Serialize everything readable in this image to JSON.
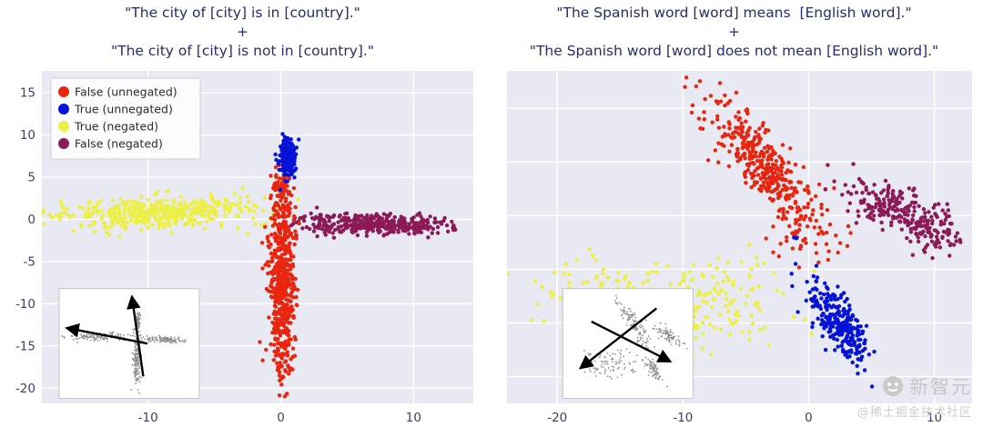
{
  "watermark": {
    "brand": "新智元",
    "credit": "@稀土掘金技术社区"
  },
  "chart_data": [
    {
      "type": "scatter",
      "title_lines": [
        "\"The city of [city] is in [country].\"",
        "+",
        "\"The city of [city] is not in [country].\""
      ],
      "title_color": "#262d6e",
      "bg": "#e9e9f4",
      "tick_color": "#3b4268",
      "xlim": [
        -18,
        14.5
      ],
      "ylim": [
        -21.8,
        17.6
      ],
      "xticks": [
        -10,
        0,
        10
      ],
      "yticks": [
        15,
        10,
        5,
        0,
        -5,
        -10,
        -15,
        -20
      ],
      "yticks_visible": true,
      "grid_x": [
        -10,
        0,
        10
      ],
      "grid_y": [
        15,
        10,
        5,
        0,
        -5,
        -10,
        -15,
        -20
      ],
      "legend": {
        "visible": true,
        "items": [
          {
            "label": "False (unnegated)",
            "color": "#e8250f"
          },
          {
            "label": "True (unnegated)",
            "color": "#0413d6"
          },
          {
            "label": "True (negated)",
            "color": "#ecf046"
          },
          {
            "label": "False (negated)",
            "color": "#8c1a56"
          }
        ]
      },
      "clusters": [
        {
          "name": "true-negated-main",
          "color": "#ecf046",
          "count": 430,
          "cx": -9.5,
          "cy": 0.8,
          "sx": 3.5,
          "sy": 0.85,
          "angle": 3
        },
        {
          "name": "true-negated-sparse",
          "color": "#ecf046",
          "count": 28,
          "cx": -3.5,
          "cy": 1.2,
          "sx": 2.2,
          "sy": 1.2,
          "angle": 0
        },
        {
          "name": "false-negated-main",
          "color": "#8c1a56",
          "count": 390,
          "cx": 7.2,
          "cy": -0.6,
          "sx": 2.7,
          "sy": 0.6,
          "angle": -3
        },
        {
          "name": "false-negated-sparse",
          "color": "#8c1a56",
          "count": 12,
          "cx": 2.8,
          "cy": 0.2,
          "sx": 1.4,
          "sy": 0.5,
          "angle": 0
        },
        {
          "name": "false-unnegated-main",
          "color": "#e8250f",
          "count": 560,
          "cx": 0.1,
          "cy": -7.5,
          "sx": 0.5,
          "sy": 6.0,
          "angle": 0
        },
        {
          "name": "false-unnegated-top",
          "color": "#e8250f",
          "count": 40,
          "cx": 0.3,
          "cy": 3.5,
          "sx": 0.55,
          "sy": 1.2,
          "angle": 0
        },
        {
          "name": "true-unnegated-main",
          "color": "#0413d6",
          "count": 170,
          "cx": 0.55,
          "cy": 7.4,
          "sx": 0.3,
          "sy": 1.3,
          "angle": 0
        }
      ],
      "inset": {
        "x0": 0.04,
        "y0": 0.655,
        "x1": 0.365,
        "y1": 0.985,
        "arrows": [
          {
            "x1": 0.6,
            "y1": 0.8,
            "x2": 0.52,
            "y2": 0.08
          },
          {
            "x1": 0.63,
            "y1": 0.5,
            "x2": 0.06,
            "y2": 0.36
          }
        ]
      }
    },
    {
      "type": "scatter",
      "title_lines": [
        "\"The Spanish word [word] means  [English word].\"",
        "+",
        "\"The Spanish word [word] does not mean [English word].\""
      ],
      "title_color": "#262d6e",
      "bg": "#e9e9f4",
      "tick_color": "#3b4268",
      "xlim": [
        -24,
        13
      ],
      "ylim": [
        -12.5,
        18.5
      ],
      "xticks": [
        -20,
        -10,
        0,
        10
      ],
      "yticks": [
        -10,
        -5,
        0,
        5,
        10,
        15
      ],
      "yticks_visible": false,
      "grid_x": [
        -20,
        -10,
        0,
        10
      ],
      "grid_y": [
        -10,
        -5,
        0,
        5,
        10,
        15
      ],
      "legend": {
        "visible": false,
        "items": []
      },
      "clusters": [
        {
          "name": "true-negated-main",
          "color": "#ecf046",
          "count": 310,
          "cx": -12.5,
          "cy": -3.8,
          "sx": 4.5,
          "sy": 1.9,
          "angle": -8
        },
        {
          "name": "true-negated-sparse",
          "color": "#ecf046",
          "count": 45,
          "cx": -6.5,
          "cy": -1.0,
          "sx": 2.6,
          "sy": 1.6,
          "angle": 0
        },
        {
          "name": "false-unnegated-diag",
          "color": "#e8250f",
          "count": 380,
          "cx": -3.4,
          "cy": 9.3,
          "sx": 4.1,
          "sy": 1.1,
          "angle": -56
        },
        {
          "name": "false-unnegated-tail",
          "color": "#e8250f",
          "count": 25,
          "cx": -0.5,
          "cy": 3.0,
          "sx": 1.5,
          "sy": 1.2,
          "angle": 0
        },
        {
          "name": "false-negated-diag",
          "color": "#8c1a56",
          "count": 270,
          "cx": 7.6,
          "cy": 5.2,
          "sx": 2.6,
          "sy": 1.0,
          "angle": -28
        },
        {
          "name": "true-unnegated-diag",
          "color": "#0413d6",
          "count": 260,
          "cx": 2.4,
          "cy": -5.2,
          "sx": 2.3,
          "sy": 0.8,
          "angle": -62
        }
      ],
      "inset": {
        "x0": 0.12,
        "y0": 0.655,
        "x1": 0.4,
        "y1": 0.985,
        "arrows": [
          {
            "x1": 0.72,
            "y1": 0.18,
            "x2": 0.14,
            "y2": 0.72
          },
          {
            "x1": 0.22,
            "y1": 0.3,
            "x2": 0.82,
            "y2": 0.66
          }
        ]
      }
    }
  ]
}
